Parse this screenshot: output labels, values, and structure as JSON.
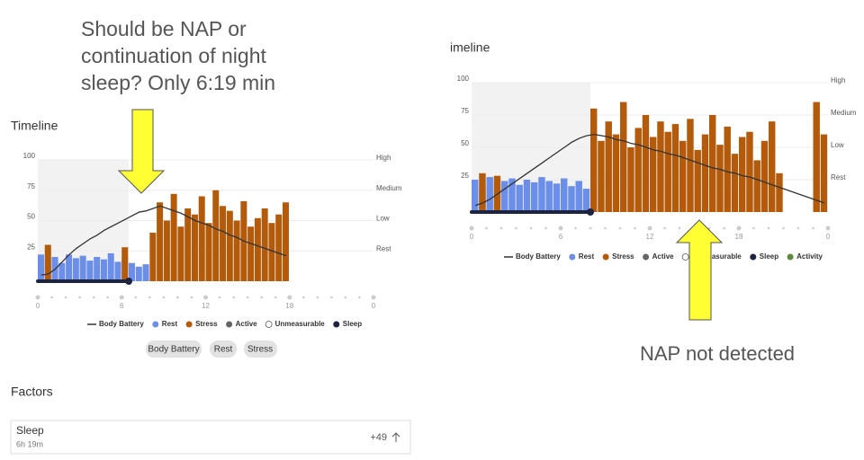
{
  "annotations": {
    "question": [
      "Should be NAP or",
      "continuation of night",
      "sleep? Only 6:19 min"
    ],
    "nap": "NAP not detected"
  },
  "left_panel": {
    "heading": "Timeline",
    "buttons": [
      "Body Battery",
      "Rest",
      "Stress"
    ],
    "factors": "Factors",
    "card": {
      "label": "Sleep",
      "duration": "6h 19m",
      "score": "+49"
    }
  },
  "right_panel": {
    "heading": "imeline"
  },
  "chart_data": [
    {
      "type": "bar",
      "xlim": [
        0,
        24
      ],
      "ylim": [
        0,
        100
      ],
      "yticks": [
        25,
        50,
        75,
        100
      ],
      "xticks": [
        0,
        6,
        12,
        18,
        {
          "value": 24,
          "label": "0"
        }
      ],
      "y2ticks": [
        {
          "value": 100,
          "label": "High"
        },
        {
          "value": 75,
          "label": "Medium"
        },
        {
          "value": 50,
          "label": "Low"
        },
        {
          "value": 25,
          "label": "Rest"
        }
      ],
      "sleep": [
        0,
        6.5
      ],
      "x": [
        0,
        0.5,
        1,
        1.5,
        2,
        2.5,
        3,
        3.5,
        4,
        4.5,
        5,
        5.5,
        6,
        6.5,
        7,
        7.5,
        8,
        8.5,
        9,
        9.5,
        10,
        10.5,
        11,
        11.5,
        12,
        12.5,
        13,
        13.5,
        14,
        14.5,
        15,
        15.5,
        16,
        16.5,
        17,
        17.5
      ],
      "series": [
        {
          "name": "Body Battery",
          "color": "#333333",
          "values": [
            5,
            6,
            10,
            16,
            22,
            27,
            31,
            35,
            38,
            42,
            45,
            48,
            51,
            54,
            57,
            58,
            60,
            62,
            60,
            58,
            56,
            53,
            50,
            48,
            46,
            43,
            41,
            38,
            36,
            33,
            31,
            29,
            27,
            25,
            23,
            21
          ]
        },
        {
          "name": "Rest",
          "color": "#6b8ee8",
          "values": [
            22,
            18,
            20,
            15,
            22,
            19,
            21,
            17,
            20,
            18,
            23,
            16,
            20,
            15,
            12,
            14,
            null,
            null,
            null,
            null,
            null,
            null,
            null,
            null,
            null,
            null,
            null,
            null,
            null,
            null,
            null,
            null,
            null,
            null,
            null,
            null
          ]
        },
        {
          "name": "Stress",
          "color": "#b35a0b",
          "values": [
            null,
            30,
            null,
            null,
            null,
            null,
            null,
            null,
            null,
            null,
            null,
            null,
            28,
            null,
            null,
            null,
            40,
            65,
            50,
            72,
            45,
            60,
            55,
            70,
            48,
            75,
            62,
            58,
            50,
            66,
            45,
            52,
            60,
            48,
            55,
            65
          ]
        }
      ],
      "legend_extra": [
        {
          "name": "Active",
          "color": "#666666"
        },
        {
          "name": "Unmeasurable",
          "color": "#ffffff"
        },
        {
          "name": "Sleep",
          "color": "#1d2440"
        }
      ]
    },
    {
      "type": "bar",
      "xlim": [
        0,
        24
      ],
      "ylim": [
        0,
        100
      ],
      "yticks": [
        25,
        50,
        75,
        100
      ],
      "xticks": [
        0,
        6,
        12,
        18,
        {
          "value": 24,
          "label": "0"
        }
      ],
      "y2ticks": [
        {
          "value": 100,
          "label": "High"
        },
        {
          "value": 75,
          "label": "Medium"
        },
        {
          "value": 50,
          "label": "Low"
        },
        {
          "value": 25,
          "label": "Rest"
        }
      ],
      "sleep": [
        0,
        8
      ],
      "x": [
        0,
        0.5,
        1,
        1.5,
        2,
        2.5,
        3,
        3.5,
        4,
        4.5,
        5,
        5.5,
        6,
        6.5,
        7,
        7.5,
        8,
        8.5,
        9,
        9.5,
        10,
        10.5,
        11,
        11.5,
        12,
        12.5,
        13,
        13.5,
        14,
        14.5,
        15,
        15.5,
        16,
        16.5,
        17,
        17.5,
        18,
        18.5,
        19,
        19.5,
        20,
        20.5,
        21,
        21.5,
        22,
        22.5,
        23,
        23.5
      ],
      "series": [
        {
          "name": "Body Battery",
          "color": "#333333",
          "values": [
            5,
            7,
            10,
            14,
            18,
            22,
            26,
            30,
            34,
            38,
            42,
            46,
            50,
            54,
            57,
            59,
            60,
            59,
            58,
            56,
            55,
            53,
            52,
            50,
            48,
            47,
            45,
            44,
            42,
            40,
            38,
            36,
            34,
            33,
            31,
            30,
            28,
            27,
            25,
            23,
            21,
            19,
            17,
            15,
            13,
            11,
            9,
            7
          ]
        },
        {
          "name": "Rest",
          "color": "#6b8ee8",
          "values": [
            25,
            20,
            27,
            22,
            24,
            26,
            21,
            25,
            23,
            27,
            24,
            22,
            26,
            20,
            24,
            18,
            null,
            null,
            null,
            null,
            null,
            null,
            null,
            null,
            null,
            null,
            null,
            null,
            null,
            null,
            null,
            null,
            null,
            null,
            null,
            null,
            null,
            null,
            null,
            null,
            null,
            null,
            null,
            null,
            null,
            null,
            null,
            null
          ]
        },
        {
          "name": "Stress",
          "color": "#b35a0b",
          "values": [
            null,
            30,
            null,
            28,
            null,
            null,
            null,
            null,
            null,
            null,
            null,
            null,
            null,
            null,
            null,
            null,
            80,
            55,
            70,
            60,
            85,
            50,
            65,
            75,
            58,
            70,
            62,
            68,
            55,
            72,
            48,
            60,
            75,
            52,
            66,
            45,
            58,
            62,
            40,
            55,
            70,
            30,
            null,
            null,
            null,
            null,
            85,
            60
          ]
        }
      ],
      "legend_extra": [
        {
          "name": "Active",
          "color": "#666666"
        },
        {
          "name": "Unmeasurable",
          "color": "#ffffff"
        },
        {
          "name": "Sleep",
          "color": "#1d2440"
        },
        {
          "name": "Activity",
          "color": "#5a8a3a"
        }
      ]
    }
  ]
}
